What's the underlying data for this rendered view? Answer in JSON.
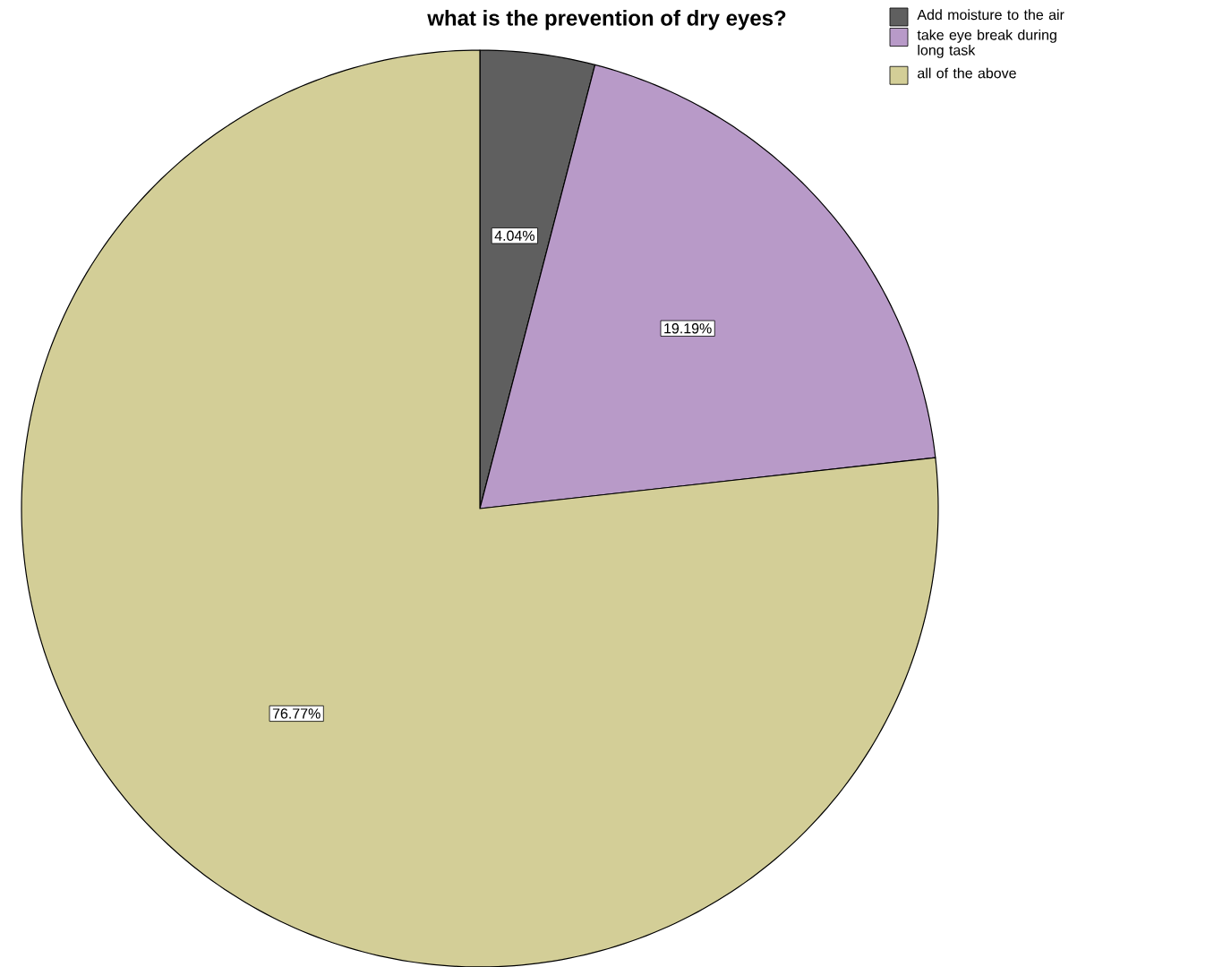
{
  "chart_data": {
    "type": "pie",
    "title": "what is the prevention of dry eyes?",
    "categories": [
      "Add moisture to the air",
      "take eye break during long task",
      "all of the above"
    ],
    "values": [
      4.04,
      19.19,
      76.77
    ],
    "value_labels": [
      "4.04%",
      "19.19%",
      "76.77%"
    ],
    "colors": [
      "#5f5f5f",
      "#b89ac8",
      "#d3ce97"
    ],
    "legend": "top right"
  }
}
